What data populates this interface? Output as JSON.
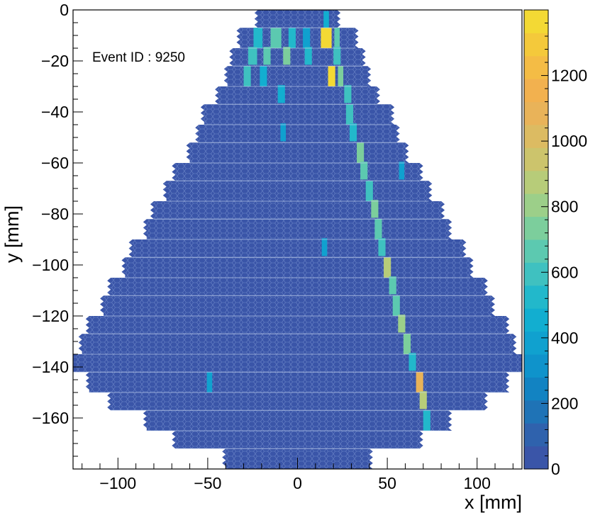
{
  "chart_data": {
    "type": "heatmap",
    "annotation": "Event ID : 9250",
    "xlabel": "x [mm]",
    "ylabel": "y [mm]",
    "xlim": [
      -125,
      125
    ],
    "ylim": [
      -180,
      0
    ],
    "x_ticks": [
      "−100",
      "−50",
      "0",
      "50",
      "100"
    ],
    "x_tick_values": [
      -100,
      -50,
      0,
      50,
      100
    ],
    "y_ticks": [
      "0",
      "−20",
      "−40",
      "−60",
      "−80",
      "−100",
      "−120",
      "−140",
      "−160"
    ],
    "y_tick_values": [
      0,
      -20,
      -40,
      -60,
      -80,
      -100,
      -120,
      -140,
      -160
    ],
    "colorbar": {
      "zlim": [
        0,
        1400
      ],
      "ticks": [
        "0",
        "200",
        "400",
        "600",
        "800",
        "1000",
        "1200"
      ],
      "tick_values": [
        0,
        200,
        400,
        600,
        800,
        1000,
        1200
      ],
      "n_bands": 20,
      "palette": [
        "#3a55a8",
        "#2f62ad",
        "#1f73b6",
        "#1283c2",
        "#0f93cb",
        "#10a1cf",
        "#12aed0",
        "#22b8cb",
        "#3fc1c0",
        "#5cc9b0",
        "#7cce9c",
        "#9ccf89",
        "#b7cc79",
        "#ccc46c",
        "#dcbb62",
        "#e9b359",
        "#f2b14f",
        "#f4bc45",
        "#f4c93b",
        "#f3d934"
      ]
    },
    "detector_background_value": 0,
    "rows": [
      {
        "y_top": 0,
        "y_bottom": -7,
        "x_min": -22,
        "x_max": 22
      },
      {
        "y_top": -7,
        "y_bottom": -15,
        "x_min": -32,
        "x_max": 32
      },
      {
        "y_top": -15,
        "y_bottom": -22,
        "x_min": -36,
        "x_max": 36
      },
      {
        "y_top": -22,
        "y_bottom": -30,
        "x_min": -39,
        "x_max": 39
      },
      {
        "y_top": -30,
        "y_bottom": -37,
        "x_min": -44,
        "x_max": 44
      },
      {
        "y_top": -37,
        "y_bottom": -45,
        "x_min": -52,
        "x_max": 52
      },
      {
        "y_top": -45,
        "y_bottom": -52,
        "x_min": -55,
        "x_max": 55
      },
      {
        "y_top": -52,
        "y_bottom": -60,
        "x_min": -60,
        "x_max": 60
      },
      {
        "y_top": -60,
        "y_bottom": -67,
        "x_min": -68,
        "x_max": 68
      },
      {
        "y_top": -67,
        "y_bottom": -75,
        "x_min": -73,
        "x_max": 73
      },
      {
        "y_top": -75,
        "y_bottom": -82,
        "x_min": -80,
        "x_max": 80
      },
      {
        "y_top": -82,
        "y_bottom": -90,
        "x_min": -84,
        "x_max": 84
      },
      {
        "y_top": -90,
        "y_bottom": -97,
        "x_min": -92,
        "x_max": 92
      },
      {
        "y_top": -97,
        "y_bottom": -105,
        "x_min": -96,
        "x_max": 96
      },
      {
        "y_top": -105,
        "y_bottom": -112,
        "x_min": -104,
        "x_max": 104
      },
      {
        "y_top": -112,
        "y_bottom": -120,
        "x_min": -108,
        "x_max": 108
      },
      {
        "y_top": -120,
        "y_bottom": -127,
        "x_min": -116,
        "x_max": 116
      },
      {
        "y_top": -127,
        "y_bottom": -135,
        "x_min": -120,
        "x_max": 120
      },
      {
        "y_top": -135,
        "y_bottom": -142,
        "x_min": -125,
        "x_max": 125
      },
      {
        "y_top": -142,
        "y_bottom": -150,
        "x_min": -116,
        "x_max": 116
      },
      {
        "y_top": -150,
        "y_bottom": -157,
        "x_min": -104,
        "x_max": 104
      },
      {
        "y_top": -157,
        "y_bottom": -165,
        "x_min": -84,
        "x_max": 84
      },
      {
        "y_top": -165,
        "y_bottom": -172,
        "x_min": -68,
        "x_max": 68
      },
      {
        "y_top": -172,
        "y_bottom": -180,
        "x_min": -40,
        "x_max": 40
      }
    ],
    "hits": [
      {
        "x": 16,
        "y": -4,
        "w": 3,
        "h": 7,
        "value": 450
      },
      {
        "x": -22,
        "y": -11,
        "w": 5,
        "h": 8,
        "value": 500
      },
      {
        "x": -12,
        "y": -11,
        "w": 6,
        "h": 8,
        "value": 650
      },
      {
        "x": -3,
        "y": -11,
        "w": 4,
        "h": 8,
        "value": 500
      },
      {
        "x": 5,
        "y": -11,
        "w": 4,
        "h": 8,
        "value": 350
      },
      {
        "x": 16,
        "y": -11,
        "w": 6,
        "h": 8,
        "value": 1400
      },
      {
        "x": 22,
        "y": -11,
        "w": 3,
        "h": 8,
        "value": 650
      },
      {
        "x": -25,
        "y": -18,
        "w": 5,
        "h": 7,
        "value": 600
      },
      {
        "x": -17,
        "y": -18,
        "w": 4,
        "h": 7,
        "value": 650
      },
      {
        "x": -6,
        "y": -18,
        "w": 4,
        "h": 7,
        "value": 700
      },
      {
        "x": 6,
        "y": -18,
        "w": 4,
        "h": 7,
        "value": 500
      },
      {
        "x": 22,
        "y": -18,
        "w": 4,
        "h": 7,
        "value": 600
      },
      {
        "x": -28,
        "y": -26,
        "w": 4,
        "h": 8,
        "value": 600
      },
      {
        "x": -19,
        "y": -26,
        "w": 4,
        "h": 8,
        "value": 450
      },
      {
        "x": 19,
        "y": -26,
        "w": 4,
        "h": 8,
        "value": 1350
      },
      {
        "x": 24,
        "y": -26,
        "w": 3,
        "h": 8,
        "value": 700
      },
      {
        "x": 28,
        "y": -33,
        "w": 4,
        "h": 7,
        "value": 600
      },
      {
        "x": -9,
        "y": -33,
        "w": 4,
        "h": 7,
        "value": 450
      },
      {
        "x": 29,
        "y": -41,
        "w": 4,
        "h": 8,
        "value": 600
      },
      {
        "x": 31,
        "y": -48,
        "w": 4,
        "h": 7,
        "value": 550
      },
      {
        "x": -8,
        "y": -48,
        "w": 3,
        "h": 7,
        "value": 400
      },
      {
        "x": 35,
        "y": -56,
        "w": 4,
        "h": 8,
        "value": 750
      },
      {
        "x": 37,
        "y": -63,
        "w": 4,
        "h": 7,
        "value": 650
      },
      {
        "x": 58,
        "y": -63,
        "w": 3,
        "h": 7,
        "value": 350
      },
      {
        "x": 40,
        "y": -71,
        "w": 4,
        "h": 8,
        "value": 600
      },
      {
        "x": 43,
        "y": -78,
        "w": 4,
        "h": 7,
        "value": 750
      },
      {
        "x": 45,
        "y": -86,
        "w": 4,
        "h": 8,
        "value": 650
      },
      {
        "x": 47,
        "y": -93,
        "w": 4,
        "h": 7,
        "value": 600
      },
      {
        "x": 15,
        "y": -93,
        "w": 3,
        "h": 7,
        "value": 350
      },
      {
        "x": 50,
        "y": -101,
        "w": 4,
        "h": 8,
        "value": 850
      },
      {
        "x": 53,
        "y": -108,
        "w": 4,
        "h": 7,
        "value": 650
      },
      {
        "x": 55,
        "y": -116,
        "w": 4,
        "h": 8,
        "value": 650
      },
      {
        "x": 58,
        "y": -123,
        "w": 4,
        "h": 7,
        "value": 800
      },
      {
        "x": 61,
        "y": -131,
        "w": 4,
        "h": 8,
        "value": 700
      },
      {
        "x": 64,
        "y": -138,
        "w": 4,
        "h": 7,
        "value": 500
      },
      {
        "x": 68,
        "y": -146,
        "w": 4,
        "h": 8,
        "value": 1050
      },
      {
        "x": -49,
        "y": -146,
        "w": 3,
        "h": 8,
        "value": 350
      },
      {
        "x": 70,
        "y": -153,
        "w": 4,
        "h": 7,
        "value": 850
      },
      {
        "x": 72,
        "y": -161,
        "w": 4,
        "h": 8,
        "value": 550
      }
    ]
  }
}
